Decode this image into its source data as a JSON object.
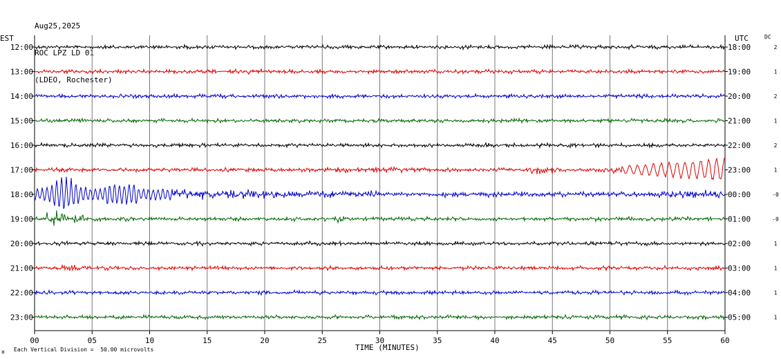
{
  "header": {
    "date": "Aug25,2025",
    "station": "ROC LPZ LD 01",
    "network": "(LDEO, Rochester)"
  },
  "labels": {
    "left_zone": "EST",
    "right_zone": "UTC",
    "dc": "DC",
    "xlabel": "TIME (MINUTES)",
    "footer_mark": "ᴚ",
    "footer": "Each Vertical Division =  50.00 microvolts"
  },
  "chart_data": {
    "type": "line",
    "title": "ROC LPZ LD 01",
    "xlabel": "TIME (MINUTES)",
    "xlim": [
      0,
      60
    ],
    "x_ticks": [
      "00",
      "05",
      "10",
      "15",
      "20",
      "25",
      "30",
      "35",
      "40",
      "45",
      "50",
      "55",
      "60"
    ],
    "grid": true,
    "colors": [
      "#000000",
      "#dd0000",
      "#0000cc",
      "#006600"
    ],
    "traces": [
      {
        "est": "12:00",
        "utc": "18:00",
        "dc": "2",
        "color": "#000000"
      },
      {
        "est": "13:00",
        "utc": "19:00",
        "dc": "1",
        "color": "#dd0000"
      },
      {
        "est": "14:00",
        "utc": "20:00",
        "dc": "2",
        "color": "#0000cc"
      },
      {
        "est": "15:00",
        "utc": "21:00",
        "dc": "1",
        "color": "#006600"
      },
      {
        "est": "16:00",
        "utc": "22:00",
        "dc": "2",
        "color": "#000000"
      },
      {
        "est": "17:00",
        "utc": "23:00",
        "dc": "1",
        "color": "#dd0000"
      },
      {
        "est": "18:00",
        "utc": "00:00",
        "dc": "-0",
        "color": "#0000cc"
      },
      {
        "est": "19:00",
        "utc": "01:00",
        "dc": "-0",
        "color": "#006600"
      },
      {
        "est": "20:00",
        "utc": "02:00",
        "dc": "1",
        "color": "#000000"
      },
      {
        "est": "21:00",
        "utc": "03:00",
        "dc": "1",
        "color": "#dd0000"
      },
      {
        "est": "22:00",
        "utc": "04:00",
        "dc": "1",
        "color": "#0000cc"
      },
      {
        "est": "23:00",
        "utc": "05:00",
        "dc": "1",
        "color": "#006600"
      }
    ]
  }
}
